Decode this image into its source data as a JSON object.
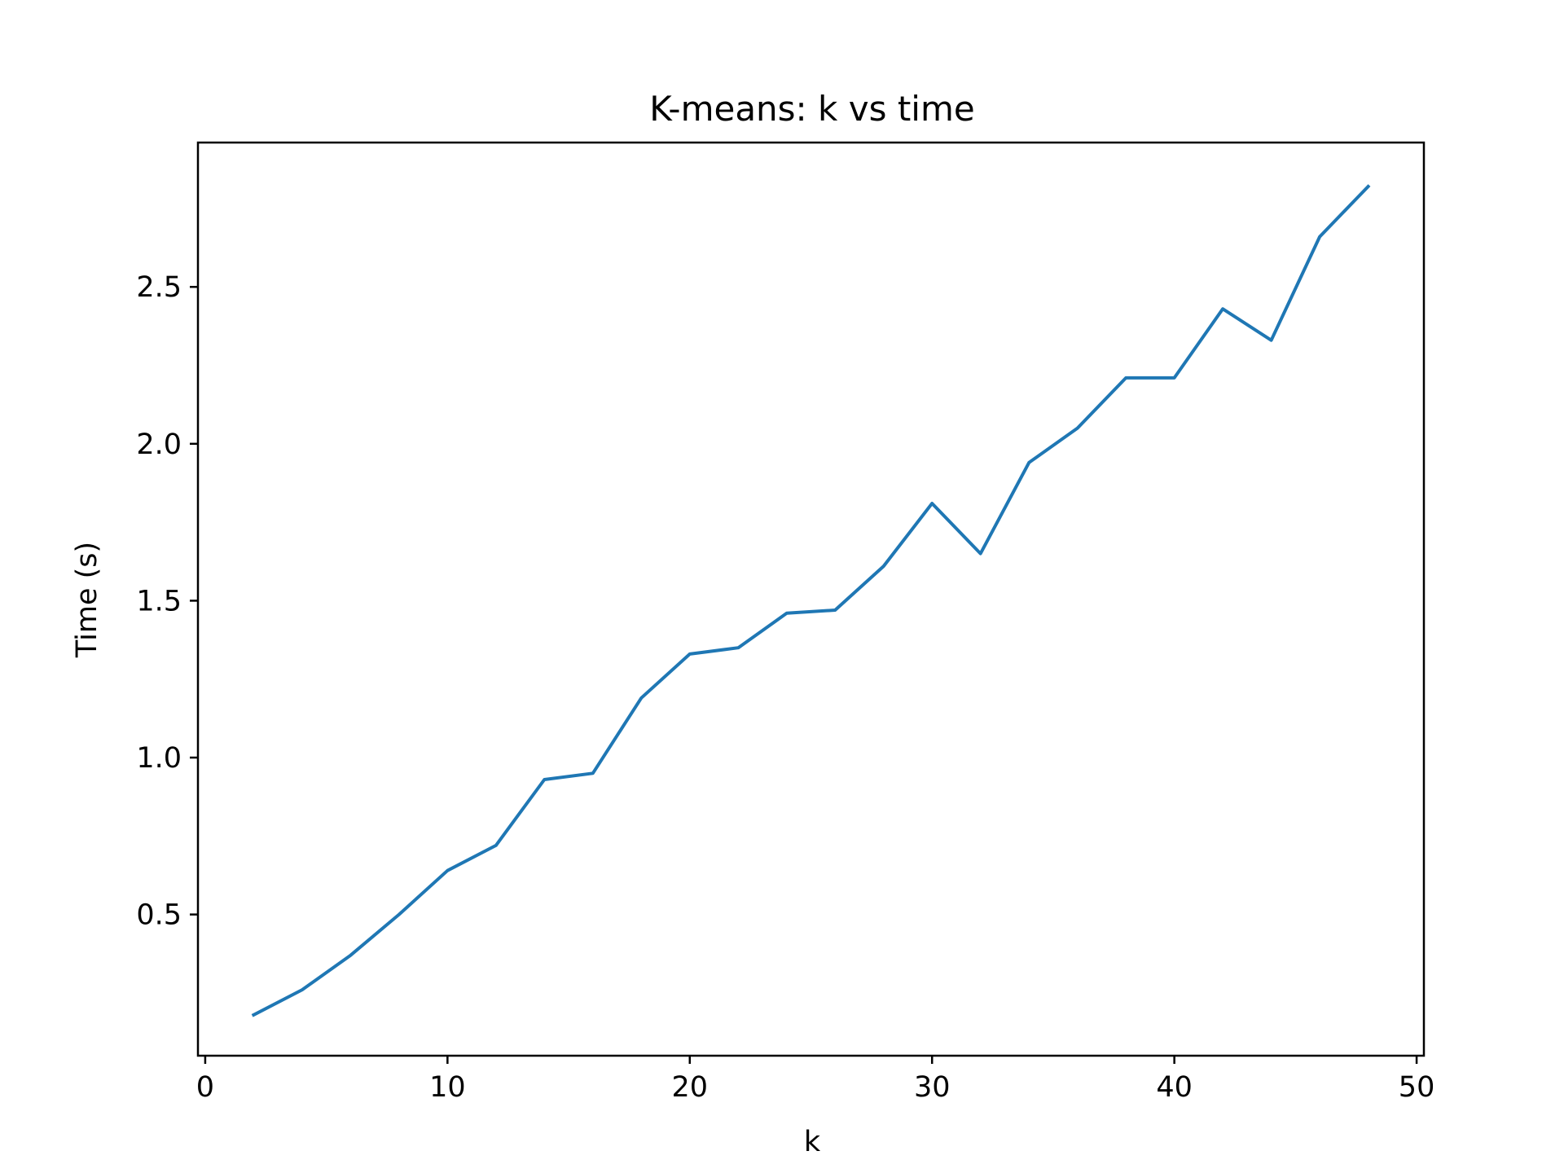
{
  "chart_data": {
    "type": "line",
    "title": "K-means: k vs time",
    "xlabel": "k",
    "ylabel": "Time (s)",
    "xlim": [
      -0.3,
      50.3
    ],
    "ylim": [
      0.05,
      2.96
    ],
    "xticks": [
      0,
      10,
      20,
      30,
      40,
      50
    ],
    "xtick_labels": [
      "0",
      "10",
      "20",
      "30",
      "40",
      "50"
    ],
    "yticks": [
      0.5,
      1.0,
      1.5,
      2.0,
      2.5
    ],
    "ytick_labels": [
      "0.5",
      "1.0",
      "1.5",
      "2.0",
      "2.5"
    ],
    "grid": false,
    "series": [
      {
        "color": "#1f77b4",
        "x": [
          2,
          4,
          6,
          8,
          10,
          12,
          14,
          16,
          18,
          20,
          22,
          24,
          26,
          28,
          30,
          32,
          34,
          36,
          38,
          40,
          42,
          44,
          46,
          48
        ],
        "y": [
          0.18,
          0.26,
          0.37,
          0.5,
          0.64,
          0.72,
          0.93,
          0.95,
          1.19,
          1.33,
          1.35,
          1.46,
          1.47,
          1.61,
          1.81,
          1.65,
          1.94,
          2.05,
          2.21,
          2.21,
          2.43,
          2.33,
          2.66,
          2.82
        ]
      }
    ]
  }
}
